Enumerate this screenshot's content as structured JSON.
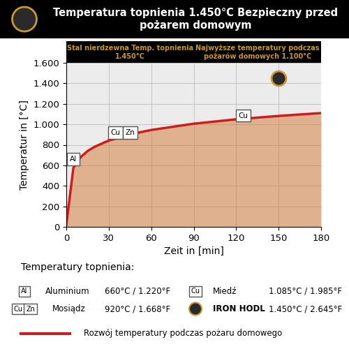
{
  "chart_data": {
    "type": "line",
    "title": "Temperatura topnienia 1.450°C Bezpieczny przed pożarem domowym",
    "x_label": "Zeit in [min]",
    "y_label": "Temperatur in [°C]",
    "x": [
      0,
      5,
      10,
      15,
      20,
      30,
      45,
      60,
      90,
      120,
      150,
      180
    ],
    "series": [
      {
        "name": "Rozwój temperatury podczas pożaru domowego",
        "color": "#d01c1c",
        "values": [
          20,
          576,
          678,
          739,
          781,
          842,
          902,
          945,
          1006,
          1049,
          1082,
          1110
        ]
      }
    ],
    "xlim": [
      0,
      180
    ],
    "xticks": [
      0,
      30,
      60,
      90,
      120,
      150,
      180
    ],
    "ylim": [
      0,
      1600
    ],
    "yticks": [
      0,
      200,
      400,
      600,
      800,
      {
        "value": 1000,
        "label": "1.000"
      },
      {
        "value": 1200,
        "label": "1.200"
      },
      {
        "value": 1400,
        "label": "1.400"
      },
      {
        "value": 1600,
        "label": "1.600"
      }
    ],
    "grid": true,
    "annotations": [
      "Stal nierdzewna Temp. topnienia 1.450°C",
      "Najwyższe temperatury podczas pożarów domowych 1.100°C"
    ],
    "melting_points": {
      "title": "Temperatury topnienia:",
      "items": [
        {
          "name": "Aluminium",
          "symbols": [
            "Al"
          ],
          "label": "660°C / 1.220°F",
          "x": 5,
          "y": 660
        },
        {
          "name": "Mosiądz",
          "symbols": [
            "Cu",
            "Zn"
          ],
          "label": "920°C / 1.668°F",
          "x": 40,
          "y": 920
        },
        {
          "name": "Miedź",
          "symbols": [
            "Cu"
          ],
          "label": "1.085°C / 1.985°F",
          "x": 125,
          "y": 1085
        },
        {
          "name": "IRON HODL",
          "label": "1.450°C / 2.645°F",
          "x": 150,
          "y": 1450
        }
      ]
    }
  }
}
